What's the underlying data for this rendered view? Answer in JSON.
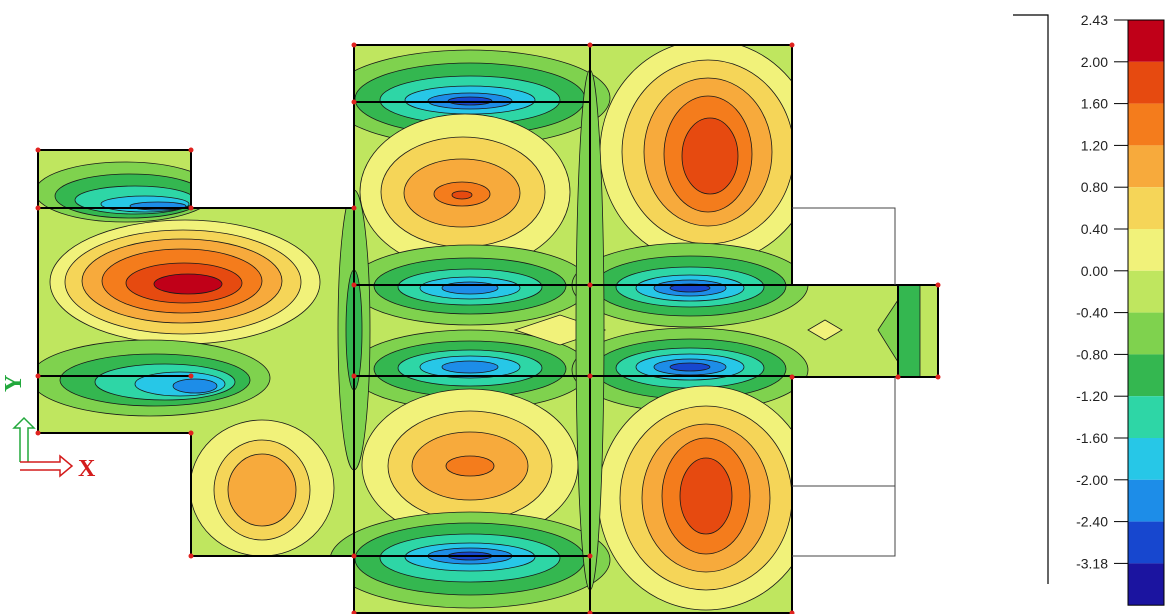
{
  "legend": {
    "ticks": [
      "2.43",
      "2.00",
      "1.60",
      "1.20",
      "0.80",
      "0.40",
      "0.00",
      "-0.40",
      "-0.80",
      "-1.20",
      "-1.60",
      "-2.00",
      "-2.40",
      "-3.18"
    ],
    "colors": [
      "#c00018",
      "#e64a10",
      "#f47c1c",
      "#f7aa3c",
      "#f5d558",
      "#f1f27a",
      "#bfe65f",
      "#7fd24e",
      "#34b750",
      "#2ed6a6",
      "#27c7e7",
      "#1d8de8",
      "#1747cf",
      "#1b14a0"
    ]
  },
  "axes": {
    "x_label": "X",
    "y_label": "Y",
    "x_color": "#d41c1c",
    "y_color": "#22a83c"
  },
  "background_color": "#bfe65f"
}
